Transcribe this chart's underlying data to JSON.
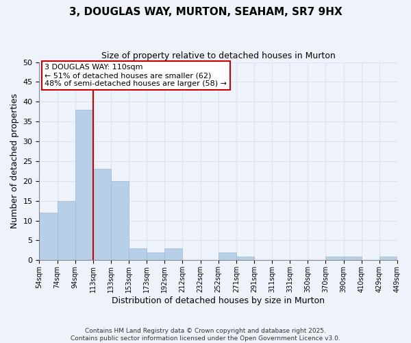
{
  "title": "3, DOUGLAS WAY, MURTON, SEAHAM, SR7 9HX",
  "subtitle": "Size of property relative to detached houses in Murton",
  "xlabel": "Distribution of detached houses by size in Murton",
  "ylabel": "Number of detached properties",
  "bin_labels": [
    "54sqm",
    "74sqm",
    "94sqm",
    "113sqm",
    "133sqm",
    "153sqm",
    "173sqm",
    "192sqm",
    "212sqm",
    "232sqm",
    "252sqm",
    "271sqm",
    "291sqm",
    "311sqm",
    "331sqm",
    "350sqm",
    "370sqm",
    "390sqm",
    "410sqm",
    "429sqm",
    "449sqm"
  ],
  "bar_values": [
    12,
    15,
    38,
    23,
    20,
    3,
    2,
    3,
    0,
    0,
    2,
    1,
    0,
    0,
    0,
    0,
    1,
    1,
    0,
    1
  ],
  "bar_color": "#b8cfe8",
  "bar_edge_color": "#a0b8d8",
  "vline_x_label_idx": 3,
  "vline_color": "#cc0000",
  "ylim": [
    0,
    50
  ],
  "yticks": [
    0,
    5,
    10,
    15,
    20,
    25,
    30,
    35,
    40,
    45,
    50
  ],
  "annotation_title": "3 DOUGLAS WAY: 110sqm",
  "annotation_line1": "← 51% of detached houses are smaller (62)",
  "annotation_line2": "48% of semi-detached houses are larger (58) →",
  "background_color": "#eef2fb",
  "grid_color": "#d8e4f0",
  "footer1": "Contains HM Land Registry data © Crown copyright and database right 2025.",
  "footer2": "Contains public sector information licensed under the Open Government Licence v3.0."
}
